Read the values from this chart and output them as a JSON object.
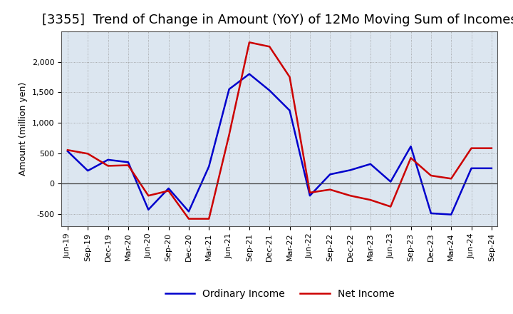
{
  "title": "[3355]  Trend of Change in Amount (YoY) of 12Mo Moving Sum of Incomes",
  "ylabel": "Amount (million yen)",
  "x_labels": [
    "Jun-19",
    "Sep-19",
    "Dec-19",
    "Mar-20",
    "Jun-20",
    "Sep-20",
    "Dec-20",
    "Mar-21",
    "Jun-21",
    "Sep-21",
    "Dec-21",
    "Mar-22",
    "Jun-22",
    "Sep-22",
    "Dec-22",
    "Mar-23",
    "Jun-23",
    "Sep-23",
    "Dec-23",
    "Mar-24",
    "Jun-24",
    "Sep-24"
  ],
  "ordinary_income": [
    530,
    210,
    390,
    350,
    -430,
    -80,
    -460,
    280,
    1550,
    1800,
    1530,
    1200,
    -200,
    150,
    220,
    320,
    30,
    610,
    -490,
    -510,
    250,
    250
  ],
  "net_income": [
    550,
    490,
    290,
    300,
    -200,
    -120,
    -580,
    -580,
    800,
    2320,
    2250,
    1750,
    -150,
    -100,
    -200,
    -270,
    -380,
    420,
    130,
    80,
    580,
    580
  ],
  "ordinary_color": "#0000cc",
  "net_color": "#cc0000",
  "line_width": 1.8,
  "ylim": [
    -700,
    2500
  ],
  "yticks": [
    -500,
    0,
    500,
    1000,
    1500,
    2000
  ],
  "plot_bg_color": "#dce6f0",
  "fig_bg_color": "#ffffff",
  "grid_color": "#999999",
  "legend_labels": [
    "Ordinary Income",
    "Net Income"
  ],
  "title_fontsize": 13,
  "axis_fontsize": 9,
  "tick_fontsize": 8
}
